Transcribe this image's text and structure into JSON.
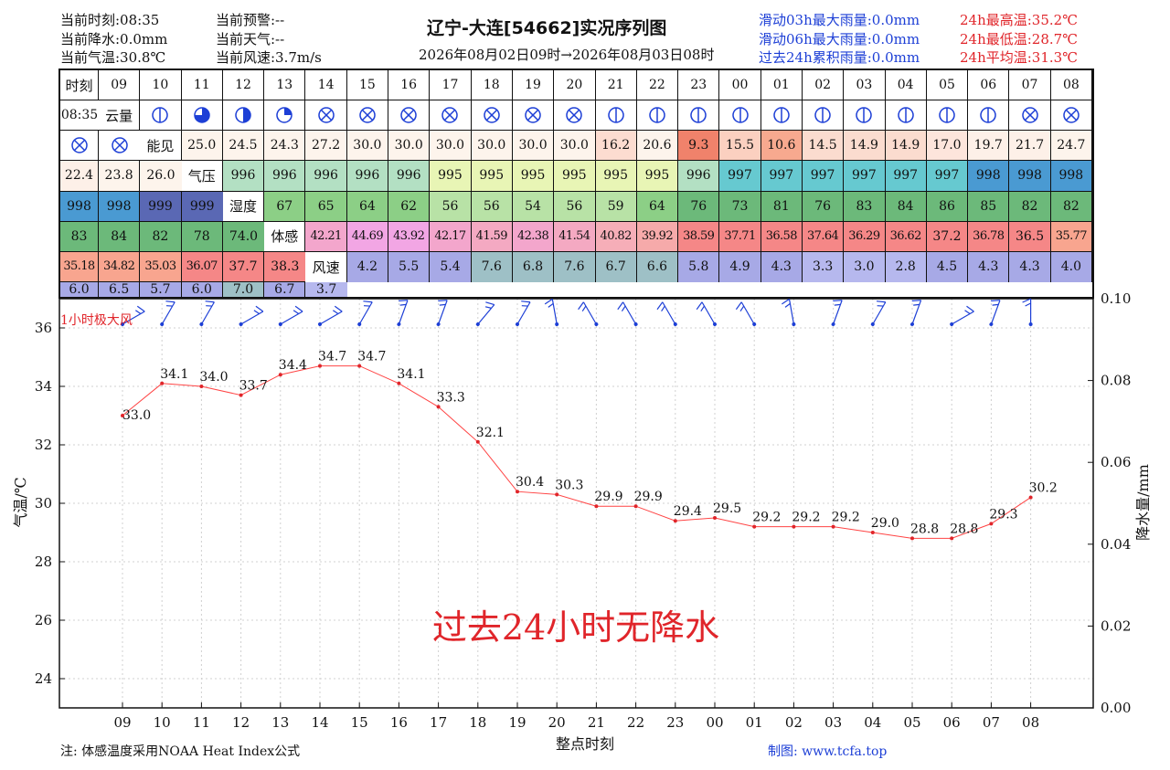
{
  "header": {
    "current_time": "当前时刻:08:35",
    "current_precip": "当前降水:0.0mm",
    "current_temp": "当前气温:30.8℃",
    "current_warning": "当前预警:--",
    "current_weather": "当前天气:--",
    "current_wind": "当前风速:3.7m/s",
    "title": "辽宁-大连[54662]实况序列图",
    "subtitle": "2026年08月02日09时→2026年08月03日08时",
    "rain_03h": "滑动03h最大雨量:0.0mm",
    "rain_06h": "滑动06h最大雨量:0.0mm",
    "rain_24h": "过去24h累积雨量:0.0mm",
    "max_temp": "24h最高温:35.2℃",
    "min_temp": "24h最低温:28.7℃",
    "avg_temp": "24h平均温:31.3℃"
  },
  "table": {
    "labels": [
      "时刻",
      "云量",
      "能见",
      "气压",
      "湿度",
      "体感",
      "风速"
    ],
    "hours": [
      "09",
      "10",
      "11",
      "12",
      "13",
      "14",
      "15",
      "16",
      "17",
      "18",
      "19",
      "20",
      "21",
      "22",
      "23",
      "00",
      "01",
      "02",
      "03",
      "04",
      "05",
      "06",
      "07",
      "08",
      "08:35"
    ],
    "clouds": [
      "clear",
      "q3",
      "half",
      "q1",
      "x",
      "x",
      "x",
      "x",
      "x",
      "x",
      "x",
      "clear",
      "clear",
      "clear",
      "clear",
      "clear",
      "clear",
      "clear",
      "clear",
      "clear",
      "clear",
      "x",
      "x",
      "x",
      "x"
    ],
    "visibility": [
      "25.0",
      "24.5",
      "24.3",
      "27.2",
      "30.0",
      "30.0",
      "30.0",
      "30.0",
      "30.0",
      "30.0",
      "16.2",
      "20.6",
      "9.3",
      "15.5",
      "10.6",
      "14.5",
      "14.9",
      "14.9",
      "17.0",
      "19.7",
      "21.7",
      "24.7",
      "22.4",
      "23.8",
      "26.0"
    ],
    "visibility_colors": [
      "#fdf4ec",
      "#fdf4ec",
      "#fdf4ec",
      "#fdf4ec",
      "#fdf4ec",
      "#fdf4ec",
      "#fdf4ec",
      "#fdf4ec",
      "#fdf4ec",
      "#fdf4ec",
      "#fcdcd0",
      "#fdf4ec",
      "#f0826b",
      "#fbd0c0",
      "#f7a98f",
      "#fbdccf",
      "#fbdccf",
      "#fbdccf",
      "#fde5dc",
      "#fdf0e8",
      "#fdf0e8",
      "#fdf4ec",
      "#fdf0e8",
      "#fdf4ec",
      "#fdf4ec"
    ],
    "pressure": [
      "996",
      "996",
      "996",
      "996",
      "996",
      "995",
      "995",
      "995",
      "995",
      "995",
      "995",
      "996",
      "997",
      "997",
      "997",
      "997",
      "997",
      "997",
      "998",
      "998",
      "998",
      "998",
      "998",
      "999",
      "999"
    ],
    "pressure_colors": [
      "#b3e0c3",
      "#b3e0c3",
      "#b3e0c3",
      "#b3e0c3",
      "#b3e0c3",
      "#e8f5b5",
      "#e8f5b5",
      "#e8f5b5",
      "#e8f5b5",
      "#e8f5b5",
      "#e8f5b5",
      "#b3e0c3",
      "#66c9d0",
      "#66c9d0",
      "#66c9d0",
      "#66c9d0",
      "#66c9d0",
      "#66c9d0",
      "#4a9ad2",
      "#4a9ad2",
      "#4a9ad2",
      "#4a9ad2",
      "#4a9ad2",
      "#5a68b4",
      "#5a68b4"
    ],
    "humidity": [
      "67",
      "65",
      "64",
      "62",
      "56",
      "56",
      "54",
      "56",
      "59",
      "64",
      "76",
      "73",
      "81",
      "76",
      "83",
      "84",
      "86",
      "85",
      "82",
      "82",
      "83",
      "84",
      "82",
      "78",
      "74.0"
    ],
    "humidity_colors": [
      "#8ccf86",
      "#8ccf86",
      "#8ccf86",
      "#8ccf86",
      "#b8e2a6",
      "#b8e2a6",
      "#b8e2a6",
      "#b8e2a6",
      "#b8e2a6",
      "#8ccf86",
      "#6cb97a",
      "#6cb97a",
      "#6cb97a",
      "#6cb97a",
      "#6cb97a",
      "#6cb97a",
      "#6cb97a",
      "#6cb97a",
      "#6cb97a",
      "#6cb97a",
      "#6cb97a",
      "#6cb97a",
      "#6cb97a",
      "#6cb97a",
      "#6cb97a"
    ],
    "feels_like": [
      "42.21",
      "44.69",
      "43.92",
      "42.17",
      "41.59",
      "42.38",
      "41.54",
      "40.82",
      "39.92",
      "38.59",
      "37.71",
      "36.58",
      "37.64",
      "36.29",
      "36.62",
      "37.2",
      "36.78",
      "36.5",
      "35.77",
      "35.18",
      "34.82",
      "35.03",
      "36.07",
      "37.7",
      "38.3"
    ],
    "feels_colors": [
      "#f3a6cc",
      "#f2a6e4",
      "#f2a6e4",
      "#f3a6cc",
      "#f4a9c2",
      "#f3a6cc",
      "#f4a9c2",
      "#f6aeb8",
      "#f6aaaa",
      "#f58787",
      "#f58787",
      "#f58787",
      "#f58787",
      "#f58787",
      "#f58787",
      "#f58787",
      "#f58787",
      "#f58787",
      "#f8a58f",
      "#f8a58f",
      "#f8a58f",
      "#f8a58f",
      "#f58787",
      "#f58787",
      "#f58787"
    ],
    "wind": [
      "4.2",
      "5.5",
      "5.4",
      "7.6",
      "6.8",
      "7.6",
      "6.7",
      "6.6",
      "5.8",
      "4.9",
      "4.3",
      "3.3",
      "3.0",
      "2.8",
      "4.5",
      "4.3",
      "4.3",
      "4.0",
      "6.0",
      "6.5",
      "5.7",
      "6.0",
      "7.0",
      "6.7",
      "3.7"
    ],
    "wind_colors": [
      "#a7a9e6",
      "#a7a9e6",
      "#a7a9e6",
      "#9ec0c6",
      "#9ec0c6",
      "#9ec0c6",
      "#9ec0c6",
      "#9ec0c6",
      "#a7a9e6",
      "#a7a9e6",
      "#a7a9e6",
      "#b6b8ee",
      "#b6b8ee",
      "#b6b8ee",
      "#a7a9e6",
      "#a7a9e6",
      "#a7a9e6",
      "#a7a9e6",
      "#a7a9e6",
      "#a7a9e6",
      "#a7a9e6",
      "#a7a9e6",
      "#9ec0c6",
      "#a7a9e6",
      "#b6b8ee"
    ]
  },
  "chart_data": {
    "type": "line",
    "x": [
      "09",
      "10",
      "11",
      "12",
      "13",
      "14",
      "15",
      "16",
      "17",
      "18",
      "19",
      "20",
      "21",
      "22",
      "23",
      "00",
      "01",
      "02",
      "03",
      "04",
      "05",
      "06",
      "07",
      "08"
    ],
    "series": [
      {
        "name": "",
        "values": [
          33.0,
          34.1,
          34.0,
          33.7,
          34.4,
          34.7,
          34.7,
          34.1,
          33.3,
          32.1,
          30.4,
          30.3,
          29.9,
          29.9,
          29.4,
          29.5,
          29.2,
          29.2,
          29.2,
          29.0,
          28.8,
          28.8,
          29.3,
          30.2
        ],
        "color": "#ff4444"
      }
    ],
    "wind_barbs_deg": [
      240,
      210,
      210,
      240,
      240,
      240,
      210,
      200,
      200,
      220,
      210,
      170,
      150,
      150,
      150,
      150,
      150,
      170,
      200,
      210,
      200,
      240,
      200,
      180
    ],
    "xlabel": "整点时刻",
    "ylabel": "气温/℃",
    "y2label": "降水量/mm",
    "ylim": [
      23,
      37
    ],
    "yticks": [
      24,
      26,
      28,
      30,
      32,
      34,
      36
    ],
    "y2lim": [
      0,
      0.1
    ],
    "y2ticks": [
      "0.00",
      "0.02",
      "0.04",
      "0.06",
      "0.08",
      "0.10"
    ],
    "annotation_gust": "1小时极大风",
    "annotation_no_rain": "过去24小时无降水",
    "grid": true
  },
  "footer": {
    "note": "注: 体感温度采用NOAA Heat Index公式",
    "credit": "制图: www.tcfa.top"
  },
  "colors": {
    "blue": "#1d3fd6",
    "red": "#e0252a",
    "line": "#ff4444"
  }
}
